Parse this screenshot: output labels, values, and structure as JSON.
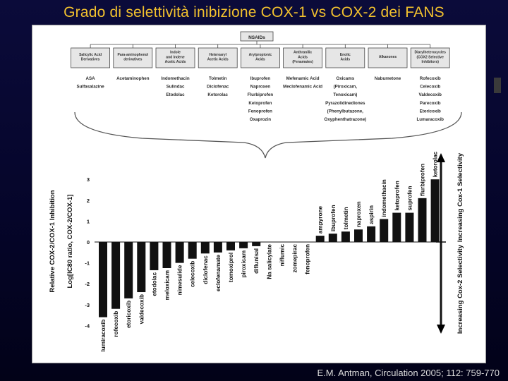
{
  "header": {
    "title": "Grado di selettività inibizione COX-1 vs COX-2 dei FANS"
  },
  "footer": {
    "citation": "E.M. Antman, Circulation 2005; 112: 759-770"
  },
  "tree": {
    "root": "NSAIDs",
    "classes": [
      {
        "title": [
          "Salicylic Acid",
          "Derivatives"
        ],
        "drugs": [
          "ASA",
          "Sulfasalazine"
        ]
      },
      {
        "title": [
          "Para-aminophenol",
          "derivatives"
        ],
        "drugs": [
          "Acetaminophen"
        ]
      },
      {
        "title": [
          "Indole",
          "and Indene",
          "Acetic Acids"
        ],
        "drugs": [
          "Indomethacin",
          "Sulindac",
          "Etodolac"
        ]
      },
      {
        "title": [
          "Heteroaryl",
          "Acetic Acids"
        ],
        "drugs": [
          "Tolmetin",
          "Diclofenac",
          "Ketorolac"
        ]
      },
      {
        "title": [
          "Arylpropionic",
          "Acids"
        ],
        "drugs": [
          "Ibuprofen",
          "Naproxen",
          "Flurbiprofen",
          "Ketoprofen",
          "Fenoprofen",
          "Oxaprozin"
        ]
      },
      {
        "title": [
          "Anthranilic",
          "Acids",
          "(Fenamates)"
        ],
        "drugs": [
          "Mefenamic Acid",
          "Meclofenamic Acid"
        ]
      },
      {
        "title": [
          "Enolic",
          "Acids"
        ],
        "drugs": [
          "Oxicams",
          "(Piroxicam,",
          "Tenoxicam)",
          "Pyrazolidinediones",
          "(Phenylbutazone,",
          "Oxyphenthatrazone)"
        ]
      },
      {
        "title": [
          "Alkanones"
        ],
        "drugs": [
          "Nabumetone"
        ]
      },
      {
        "title": [
          "Diarylheterocycles",
          "(COX2 Selective",
          "Inhibitors)"
        ],
        "drugs": [
          "Rofecoxib",
          "Celecoxib",
          "Valdecoxib",
          "Parecoxib",
          "Etoricoxib",
          "Lumaracoxib"
        ]
      }
    ]
  },
  "chart_data": {
    "type": "bar",
    "ylabel": "Relative COX-2/COX-1 Inhibition",
    "ylabel2": "Log[IC80 ratio, COX-2/COX-1]",
    "ylim": [
      -4,
      3
    ],
    "yticks": [
      "-4",
      "-3",
      "-2",
      "-1",
      "0",
      "1",
      "2",
      "3"
    ],
    "categories": [
      "lumiracoxib",
      "rofecoxib",
      "etoricoxib",
      "valdecoxib",
      "etodolac",
      "meloxicam",
      "nimesulide",
      "celecoxib",
      "diclofenac",
      "eclofenamate",
      "tomoxiprol",
      "piroxicam",
      "diflunisal",
      "Na salicylate",
      "niflumic",
      "zomepirac",
      "fenoprofen",
      "ampyrone",
      "ibuprofen",
      "tolmetin",
      "naproxen",
      "aspirin",
      "indomethacin",
      "ketoprofen",
      "suprofen",
      "flurbiprofen",
      "ketorolac"
    ],
    "values": [
      -3.6,
      -3.2,
      -2.7,
      -2.4,
      -1.35,
      -1.25,
      -1.0,
      -0.8,
      -0.55,
      -0.5,
      -0.4,
      -0.3,
      -0.2,
      0.0,
      0.0,
      0.0,
      0.0,
      0.3,
      0.4,
      0.5,
      0.6,
      0.75,
      1.1,
      1.4,
      1.4,
      2.1,
      3.0
    ],
    "arrow_top": "Increasing Cox-1 Selectivity",
    "arrow_bottom": "Increasing Cox-2 Selectivity",
    "bar_color": "#111111",
    "grid": false
  }
}
